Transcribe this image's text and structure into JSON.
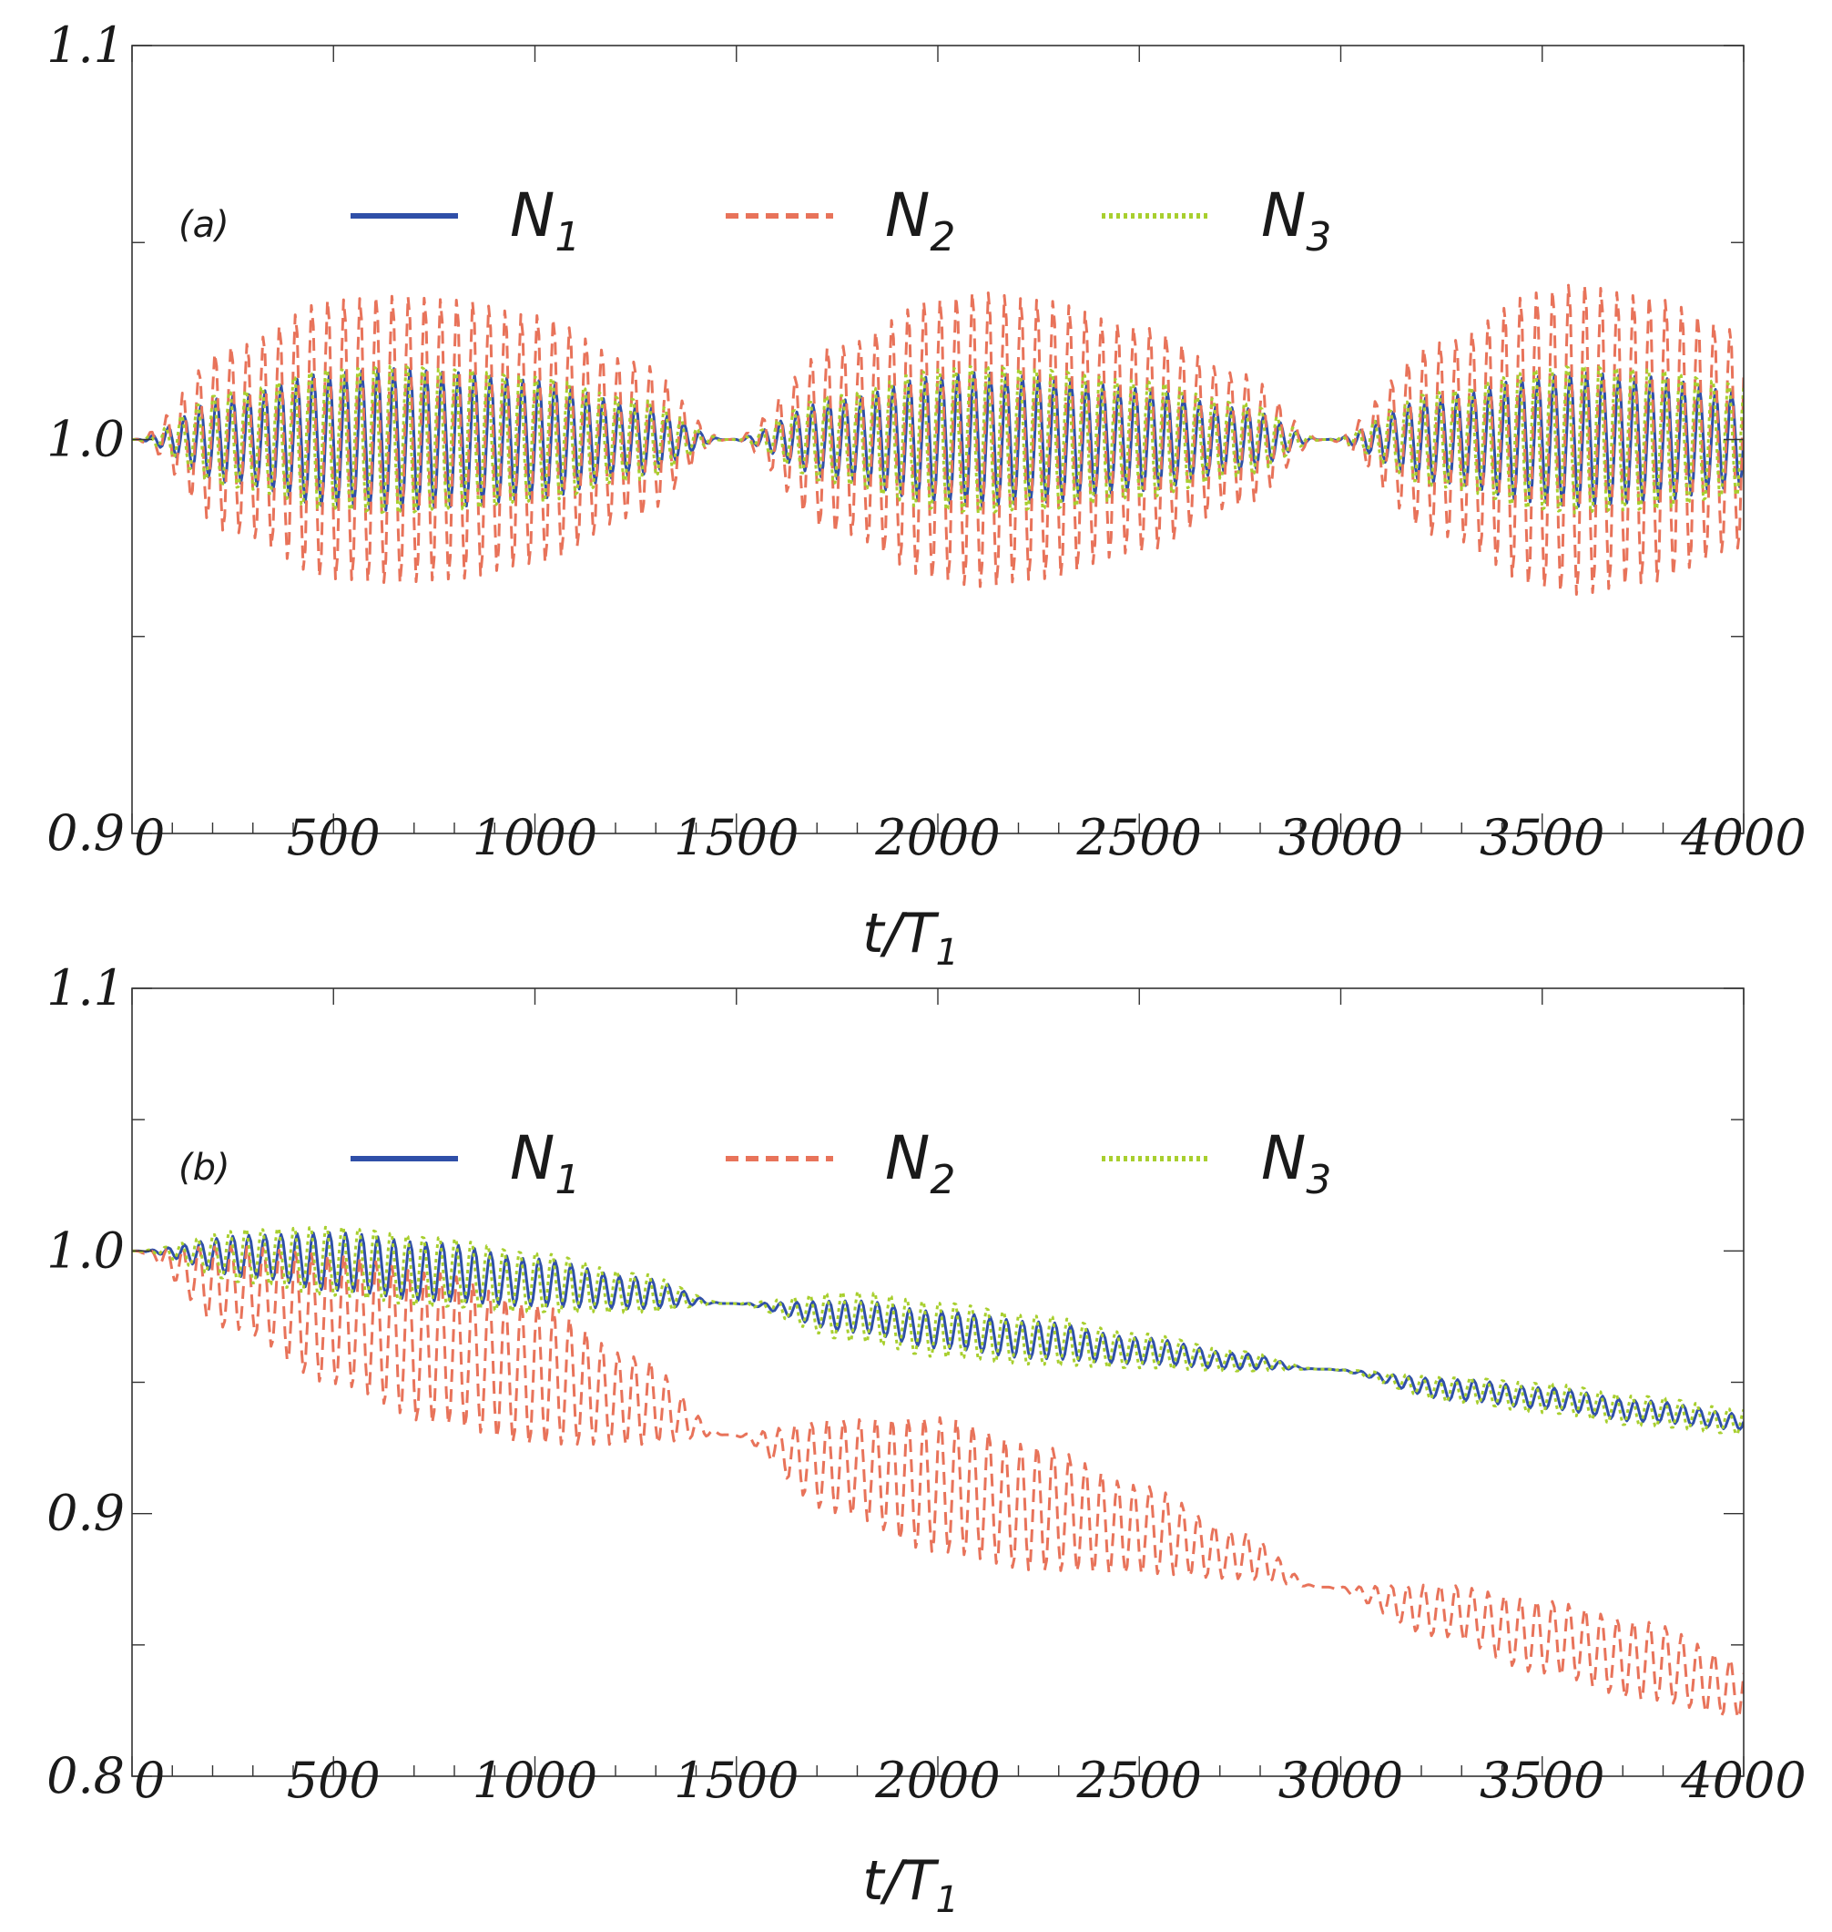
{
  "chart_data": [
    {
      "type": "line",
      "panel_label": "(a)",
      "xlabel": "t/T",
      "xlabel_sub": "1",
      "ylabel": "",
      "xlim": [
        0,
        4000
      ],
      "ylim": [
        0.9,
        1.1
      ],
      "xticks": [
        0,
        500,
        1000,
        1500,
        2000,
        2500,
        3000,
        3500,
        4000
      ],
      "xtick_labels": [
        "0",
        "500",
        "1000",
        "1500",
        "2000",
        "2500",
        "3000",
        "3500",
        "4000"
      ],
      "yticks": [
        0.9,
        1.0,
        1.1
      ],
      "ytick_labels": [
        "0.9",
        "1.0",
        "1.1"
      ],
      "legend_position": "top",
      "oscillation_period": 40,
      "series": [
        {
          "name": "N",
          "name_sub": "1",
          "color": "#2f4fa8",
          "style": "solid",
          "envelope": {
            "t": [
              0,
              250,
              500,
              650,
              800,
              1000,
              1250,
              1480,
              1750,
              2000,
              2100,
              2250,
              2500,
              2750,
              2960,
              3250,
              3500,
              3580,
              3750,
              4000
            ],
            "center": [
              1.0,
              1.0,
              1.0,
              1.0,
              1.0,
              1.0,
              1.0,
              1.0,
              1.0,
              1.0,
              1.0,
              1.0,
              1.0,
              1.0,
              1.0,
              1.0,
              1.0,
              1.0,
              1.0,
              1.0
            ],
            "amplitude": [
              0.0,
              0.011,
              0.017,
              0.018,
              0.017,
              0.015,
              0.009,
              0.0,
              0.01,
              0.016,
              0.017,
              0.016,
              0.013,
              0.008,
              0.0,
              0.011,
              0.016,
              0.017,
              0.016,
              0.012
            ]
          }
        },
        {
          "name": "N",
          "name_sub": "2",
          "color": "#e8735a",
          "style": "dashed",
          "envelope": {
            "t": [
              0,
              250,
              500,
              650,
              800,
              1000,
              1250,
              1480,
              1750,
              2000,
              2100,
              2250,
              2500,
              2750,
              2960,
              3250,
              3500,
              3580,
              3750,
              4000
            ],
            "center": [
              1.0,
              1.0,
              1.0,
              1.0,
              1.0,
              1.0,
              1.0,
              1.0,
              1.0,
              1.0,
              1.0,
              1.0,
              1.0,
              1.0,
              1.0,
              1.0,
              1.0,
              1.0,
              1.0,
              1.0
            ],
            "amplitude": [
              0.0,
              0.024,
              0.036,
              0.037,
              0.036,
              0.032,
              0.02,
              0.0,
              0.024,
              0.036,
              0.038,
              0.036,
              0.029,
              0.017,
              0.0,
              0.025,
              0.038,
              0.04,
              0.037,
              0.028
            ]
          }
        },
        {
          "name": "N",
          "name_sub": "3",
          "color": "#a8cf2e",
          "style": "dotted",
          "envelope": {
            "t": [
              0,
              250,
              500,
              650,
              800,
              1000,
              1250,
              1480,
              1750,
              2000,
              2100,
              2250,
              2500,
              2750,
              2960,
              3250,
              3500,
              3580,
              3750,
              4000
            ],
            "center": [
              1.0,
              1.0,
              1.0,
              1.0,
              1.0,
              1.0,
              1.0,
              1.0,
              1.0,
              1.0,
              1.0,
              1.0,
              1.0,
              1.0,
              1.0,
              1.0,
              1.0,
              1.0,
              1.0,
              1.0
            ],
            "amplitude": [
              0.0,
              0.013,
              0.019,
              0.02,
              0.019,
              0.017,
              0.011,
              0.0,
              0.012,
              0.019,
              0.02,
              0.019,
              0.016,
              0.01,
              0.0,
              0.013,
              0.019,
              0.02,
              0.019,
              0.015
            ]
          }
        }
      ]
    },
    {
      "type": "line",
      "panel_label": "(b)",
      "xlabel": "t/T",
      "xlabel_sub": "1",
      "ylabel": "",
      "xlim": [
        0,
        4000
      ],
      "ylim": [
        0.8,
        1.1
      ],
      "xticks": [
        0,
        500,
        1000,
        1500,
        2000,
        2500,
        3000,
        3500,
        4000
      ],
      "xtick_labels": [
        "0",
        "500",
        "1000",
        "1500",
        "2000",
        "2500",
        "3000",
        "3500",
        "4000"
      ],
      "yticks": [
        0.8,
        0.9,
        1.0,
        1.1
      ],
      "ytick_labels": [
        "0.8",
        "0.9",
        "1.0",
        "1.1"
      ],
      "legend_position": "top",
      "oscillation_period": 40,
      "series": [
        {
          "name": "N",
          "name_sub": "1",
          "color": "#2f4fa8",
          "style": "solid",
          "envelope": {
            "t": [
              0,
              300,
              500,
              750,
              1000,
              1250,
              1480,
              1800,
              2000,
              2250,
              2500,
              2750,
              2950,
              3300,
              3500,
              3750,
              4000
            ],
            "center": [
              1.0,
              0.998,
              0.996,
              0.992,
              0.988,
              0.984,
              0.98,
              0.975,
              0.97,
              0.966,
              0.962,
              0.958,
              0.955,
              0.947,
              0.944,
              0.939,
              0.935
            ],
            "amplitude": [
              0.0,
              0.008,
              0.011,
              0.011,
              0.009,
              0.006,
              0.0,
              0.006,
              0.007,
              0.007,
              0.005,
              0.003,
              0.0,
              0.004,
              0.004,
              0.004,
              0.003
            ]
          }
        },
        {
          "name": "N",
          "name_sub": "2",
          "color": "#e8735a",
          "style": "dashed",
          "envelope": {
            "t": [
              0,
              250,
              500,
              750,
              1000,
              1250,
              1480,
              1750,
              2000,
              2250,
              2500,
              2750,
              2950,
              3250,
              3500,
              3750,
              4000
            ],
            "center": [
              1.0,
              0.986,
              0.974,
              0.963,
              0.953,
              0.943,
              0.93,
              0.918,
              0.911,
              0.902,
              0.894,
              0.884,
              0.872,
              0.863,
              0.853,
              0.844,
              0.833
            ],
            "amplitude": [
              0.0,
              0.016,
              0.025,
              0.029,
              0.027,
              0.017,
              0.0,
              0.018,
              0.026,
              0.024,
              0.017,
              0.009,
              0.0,
              0.01,
              0.014,
              0.015,
              0.011
            ]
          }
        },
        {
          "name": "N",
          "name_sub": "3",
          "color": "#a8cf2e",
          "style": "dotted",
          "envelope": {
            "t": [
              0,
              300,
              500,
              750,
              1000,
              1250,
              1480,
              1800,
              2000,
              2250,
              2500,
              2750,
              2950,
              3300,
              3500,
              3750,
              4000
            ],
            "center": [
              1.0,
              0.998,
              0.996,
              0.992,
              0.988,
              0.984,
              0.98,
              0.975,
              0.97,
              0.966,
              0.962,
              0.958,
              0.955,
              0.947,
              0.944,
              0.939,
              0.935
            ],
            "amplitude": [
              0.0,
              0.011,
              0.014,
              0.014,
              0.012,
              0.008,
              0.0,
              0.01,
              0.011,
              0.01,
              0.007,
              0.004,
              0.0,
              0.005,
              0.006,
              0.006,
              0.005
            ]
          }
        }
      ]
    }
  ]
}
